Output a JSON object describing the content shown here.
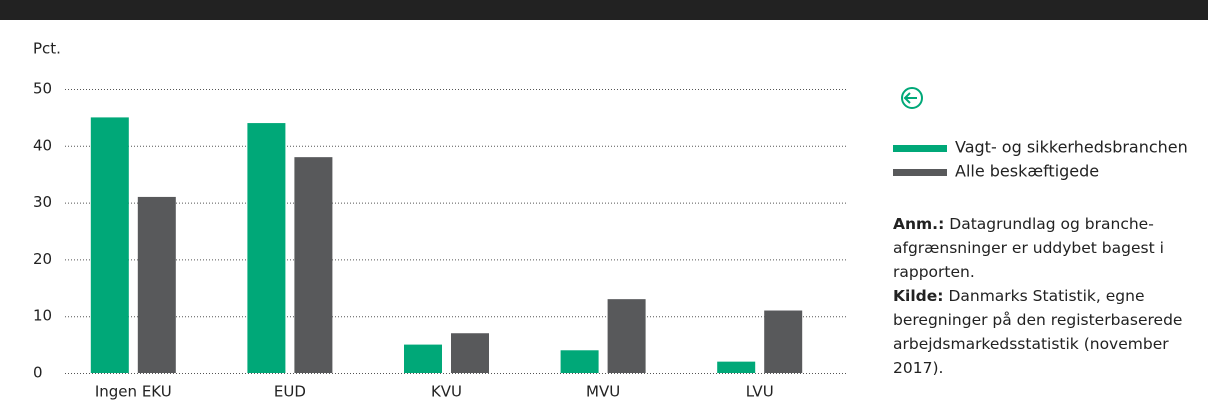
{
  "chart_data": {
    "type": "bar",
    "y_label": "Pct.",
    "categories": [
      "Ingen EKU",
      "EUD",
      "KVU",
      "MVU",
      "LVU"
    ],
    "series": [
      {
        "name": "Vagt- og sikkerhedsbranchen",
        "color": "#00a878",
        "values": [
          45,
          44,
          5,
          4,
          2
        ]
      },
      {
        "name": "Alle beskæftigede",
        "color": "#58595b",
        "values": [
          31,
          38,
          7,
          13,
          11
        ]
      }
    ],
    "ylim": [
      0,
      50
    ],
    "yticks": [
      0,
      10,
      20,
      30,
      40,
      50
    ],
    "grid": true,
    "notes": [
      {
        "label": "Anm.:",
        "text": "Datagrundlag og branche-afgrænsninger er uddybet bagest i rapporten."
      },
      {
        "label": "Kilde:",
        "text": "Danmarks Statistik, egne beregninger på den registerbaserede arbejdsmarkedsstatistik (november 2017)."
      }
    ]
  }
}
